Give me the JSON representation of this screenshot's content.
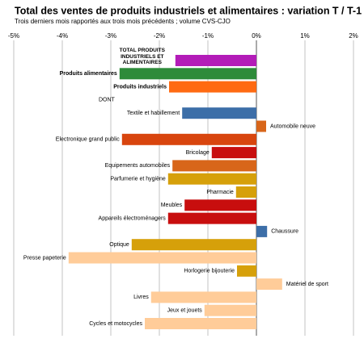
{
  "chart_data": {
    "type": "bar",
    "orientation": "horizontal",
    "title": "Total des ventes de produits industriels et alimentaires : variation T / T-1",
    "subtitle": "Trois derniers mois rapportés aux trois mois précédents ; volume CVS-CJO",
    "categories": [
      "TOTAL PRODUITS INDUSTRIELS ET ALIMENTAIRES",
      "Produits alimentaires",
      "Produits industriels",
      "DONT",
      "Textile et habillement",
      "Automobile neuve",
      "Electronique grand public",
      "Bricolage",
      "Equipements automobiles",
      "Parfumerie et hygiène",
      "Pharmacie",
      "Meubles",
      "Appareils électroménagers",
      "Chaussure",
      "Optique",
      "Presse papeterie",
      "Horlogerie bijouterie",
      "Matériel de sport",
      "Livres",
      "Jeux et jouets",
      "Cycles et motocycles"
    ],
    "values": [
      -1.67,
      -2.82,
      -1.8,
      null,
      -1.53,
      0.2,
      -2.77,
      -0.92,
      -1.73,
      -1.82,
      -0.42,
      -1.48,
      -1.82,
      0.22,
      -2.57,
      -3.87,
      -0.4,
      0.53,
      -2.17,
      -1.07,
      -2.3
    ],
    "colors": [
      "#b31cb8",
      "#2e8b3a",
      "#ff6a12",
      null,
      "#3c6ea8",
      "#d8661a",
      "#d8450e",
      "#c80e0e",
      "#d8661a",
      "#d6a00a",
      "#d6a00a",
      "#c80e0e",
      "#c80e0e",
      "#3c6ea8",
      "#d6a00a",
      "#ffcc99",
      "#d6a00a",
      "#ffcc99",
      "#ffcc99",
      "#ffcc99",
      "#ffcc99"
    ],
    "xlim": [
      -5,
      2
    ],
    "xticks": [
      {
        "value": -5,
        "label": "-5%"
      },
      {
        "value": -4,
        "label": "-4%"
      },
      {
        "value": -3,
        "label": "-3%"
      },
      {
        "value": -2,
        "label": "-2%"
      },
      {
        "value": -1,
        "label": "-1%"
      },
      {
        "value": 0,
        "label": "0%"
      },
      {
        "value": 1,
        "label": "1%"
      },
      {
        "value": 2,
        "label": "2%"
      }
    ],
    "grid": true
  }
}
